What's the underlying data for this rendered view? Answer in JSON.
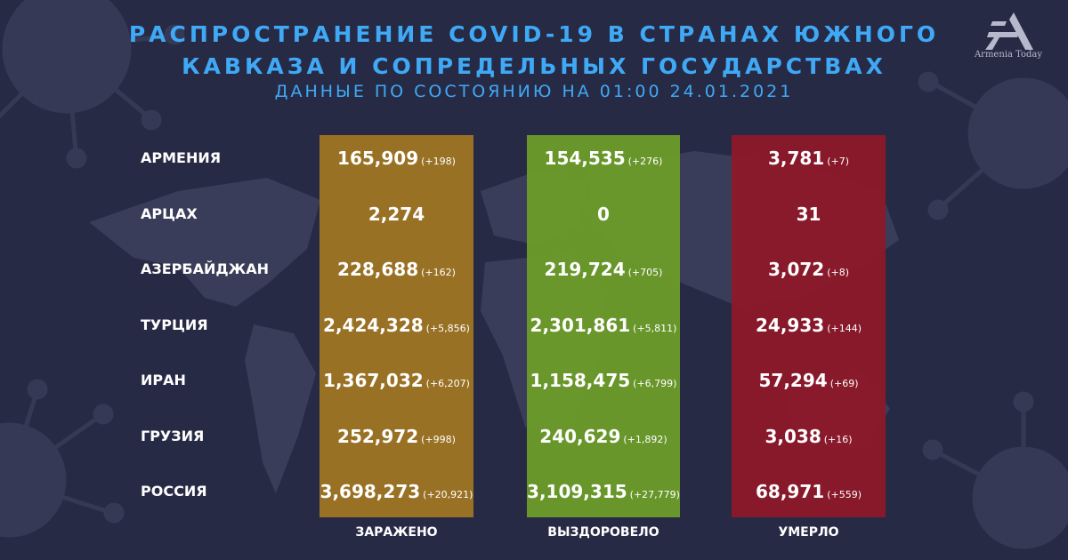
{
  "header": {
    "title_line1": "РАСПРОСТРАНЕНИЕ COVID-19 В СТРАНАХ ЮЖНОГО",
    "title_line2": "КАВКАЗА И СОПРЕДЕЛЬНЫХ ГОСУДАРСТВАХ",
    "subtitle": "ДАННЫЕ ПО СОСТОЯНИЮ НА 01:00  24.01.2021"
  },
  "logo": {
    "text": "Armenia Today"
  },
  "colors": {
    "infected": "#a37622",
    "recovered": "#6e9e28",
    "deaths": "#8f1828",
    "title": "#3fa9f5",
    "background": "#272a45"
  },
  "columns": {
    "infected": "ЗАРАЖЕНО",
    "recovered": "ВЫЗДОРОВЕЛО",
    "deaths": "УМЕРЛО"
  },
  "rows": [
    {
      "country": "АРМЕНИЯ",
      "infected": "165,909",
      "infected_delta": "(+198)",
      "recovered": "154,535",
      "recovered_delta": "(+276)",
      "deaths": "3,781",
      "deaths_delta": "(+7)"
    },
    {
      "country": "АРЦАХ",
      "infected": "2,274",
      "infected_delta": "",
      "recovered": "0",
      "recovered_delta": "",
      "deaths": "31",
      "deaths_delta": ""
    },
    {
      "country": "АЗЕРБАЙДЖАН",
      "infected": "228,688",
      "infected_delta": "(+162)",
      "recovered": "219,724",
      "recovered_delta": "(+705)",
      "deaths": "3,072",
      "deaths_delta": "(+8)"
    },
    {
      "country": "ТУРЦИЯ",
      "infected": "2,424,328",
      "infected_delta": "(+5,856)",
      "recovered": "2,301,861",
      "recovered_delta": "(+5,811)",
      "deaths": "24,933",
      "deaths_delta": "(+144)"
    },
    {
      "country": "ИРАН",
      "infected": "1,367,032",
      "infected_delta": "(+6,207)",
      "recovered": "1,158,475",
      "recovered_delta": "(+6,799)",
      "deaths": "57,294",
      "deaths_delta": "(+69)"
    },
    {
      "country": "ГРУЗИЯ",
      "infected": "252,972",
      "infected_delta": "(+998)",
      "recovered": "240,629",
      "recovered_delta": "(+1,892)",
      "deaths": "3,038",
      "deaths_delta": "(+16)"
    },
    {
      "country": "РОССИЯ",
      "infected": "3,698,273",
      "infected_delta": "(+20,921)",
      "recovered": "3,109,315",
      "recovered_delta": "(+27,779)",
      "deaths": "68,971",
      "deaths_delta": "(+559)"
    }
  ]
}
